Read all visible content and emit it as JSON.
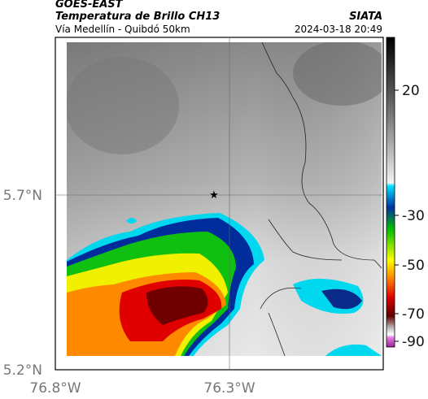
{
  "header": {
    "source": "GOES-EAST",
    "title": "Temperatura de Brillo CH13",
    "subtitle": "Vía Medellín - Quibdó 50km",
    "agency": "SIATA",
    "timestamp": "2024-03-18 20:49"
  },
  "map": {
    "lat_labels": [
      "5.7°N",
      "5.2°N"
    ],
    "lon_labels": [
      "76.8°W",
      "76.3°W"
    ]
  },
  "colorbar": {
    "labels": [
      "20",
      "-30",
      "-50",
      "-70",
      "-90"
    ]
  }
}
